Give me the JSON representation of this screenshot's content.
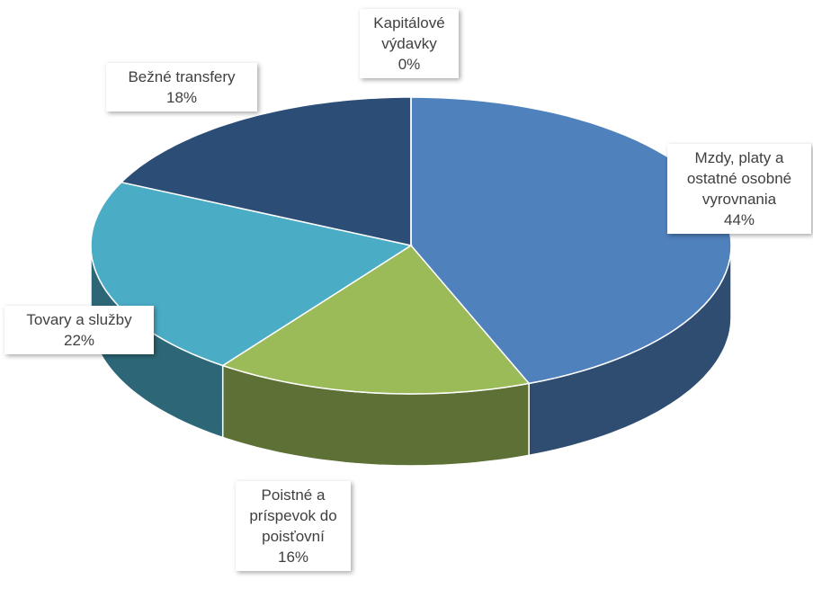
{
  "chart_data": {
    "type": "pie3d",
    "categories": [
      "Mzdy, platy a ostatné osobné vyrovnania",
      "Poistné a príspevok do poisťovní",
      "Tovary a služby",
      "Bežné transfery",
      "Kapitálové výdavky"
    ],
    "values": [
      44,
      16,
      22,
      18,
      0
    ],
    "value_labels": [
      "44%",
      "16%",
      "22%",
      "18%",
      "0%"
    ],
    "colors": [
      "#4f81bd",
      "#9bbb59",
      "#4bacc6",
      "#2c4d75",
      "#c0504d"
    ]
  }
}
